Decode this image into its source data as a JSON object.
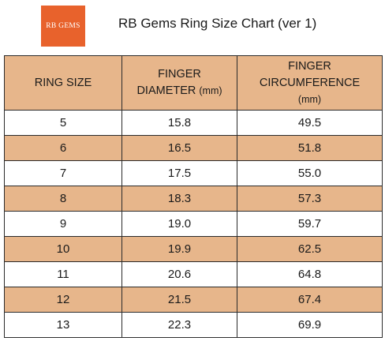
{
  "logo": {
    "text": "RB GEMS",
    "color": "#e8622c"
  },
  "title": "RB Gems Ring Size Chart (ver 1)",
  "colors": {
    "header_fill": "#e7b68b",
    "alt_row_fill": "#e7b68b",
    "border": "#2b2b2b"
  },
  "table": {
    "headers": {
      "ring_size": "RING SIZE",
      "diameter_line1": "FINGER",
      "diameter_line2": "DIAMETER",
      "diameter_unit": "(mm)",
      "circumference_line1": "FINGER",
      "circumference_line2": "CIRCUMFERENCE",
      "circumference_unit": "(mm)"
    },
    "rows": [
      [
        "5",
        "15.8",
        "49.5"
      ],
      [
        "6",
        "16.5",
        "51.8"
      ],
      [
        "7",
        "17.5",
        "55.0"
      ],
      [
        "8",
        "18.3",
        "57.3"
      ],
      [
        "9",
        "19.0",
        "59.7"
      ],
      [
        "10",
        "19.9",
        "62.5"
      ],
      [
        "11",
        "20.6",
        "64.8"
      ],
      [
        "12",
        "21.5",
        "67.4"
      ],
      [
        "13",
        "22.3",
        "69.9"
      ]
    ]
  }
}
